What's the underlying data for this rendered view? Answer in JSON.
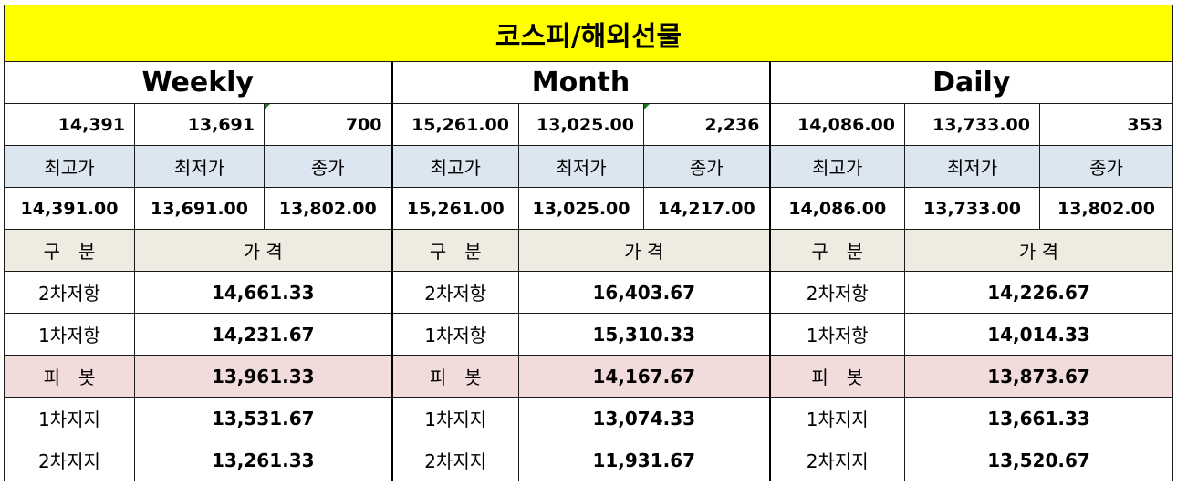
{
  "title": "코스피/해외선물",
  "periods": [
    {
      "name": "Weekly",
      "summary": [
        "14,391",
        "13,691",
        "700"
      ],
      "headers": [
        "최고가",
        "최저가",
        "종가"
      ],
      "hlc": [
        "14,391.00",
        "13,691.00",
        "13,802.00"
      ],
      "sub_headers": [
        "구　분",
        "가 격"
      ],
      "levels": [
        {
          "label": "2차저항",
          "value": "14,661.33"
        },
        {
          "label": "1차저항",
          "value": "14,231.67"
        },
        {
          "label": "피　봇",
          "value": "13,961.33"
        },
        {
          "label": "1차지지",
          "value": "13,531.67"
        },
        {
          "label": "2차지지",
          "value": "13,261.33"
        }
      ]
    },
    {
      "name": "Month",
      "summary": [
        "15,261.00",
        "13,025.00",
        "2,236"
      ],
      "headers": [
        "최고가",
        "최저가",
        "종가"
      ],
      "hlc": [
        "15,261.00",
        "13,025.00",
        "14,217.00"
      ],
      "sub_headers": [
        "구　분",
        "가 격"
      ],
      "levels": [
        {
          "label": "2차저항",
          "value": "16,403.67"
        },
        {
          "label": "1차저항",
          "value": "15,310.33"
        },
        {
          "label": "피　봇",
          "value": "14,167.67"
        },
        {
          "label": "1차지지",
          "value": "13,074.33"
        },
        {
          "label": "2차지지",
          "value": "11,931.67"
        }
      ]
    },
    {
      "name": "Daily",
      "summary": [
        "14,086.00",
        "13,733.00",
        "353"
      ],
      "headers": [
        "최고가",
        "최저가",
        "종가"
      ],
      "hlc": [
        "14,086.00",
        "13,733.00",
        "13,802.00"
      ],
      "sub_headers": [
        "구　분",
        "가 격"
      ],
      "levels": [
        {
          "label": "2차저항",
          "value": "14,226.67"
        },
        {
          "label": "1차저항",
          "value": "14,014.33"
        },
        {
          "label": "피　봇",
          "value": "13,873.67"
        },
        {
          "label": "1차지지",
          "value": "13,661.33"
        },
        {
          "label": "2차지지",
          "value": "13,520.67"
        }
      ]
    }
  ]
}
